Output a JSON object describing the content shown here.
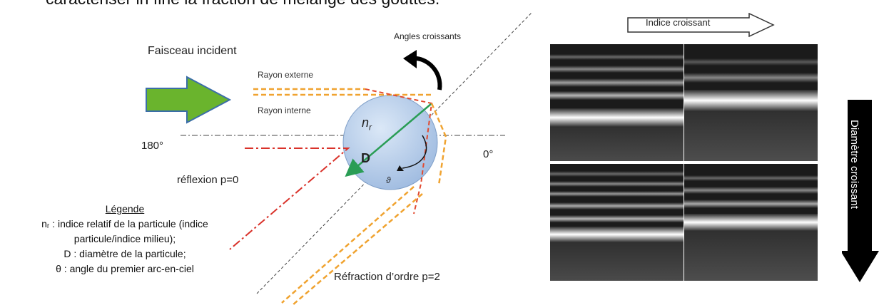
{
  "top_text": "caractériser in fine la fraction de mélange des gouttes.",
  "diagram": {
    "incident_beam": "Faisceau incident",
    "increasing_angles": "Angles croissants",
    "external_ray": "Rayon externe",
    "internal_ray": "Rayon interne",
    "angle_180": "180°",
    "angle_0": "0°",
    "nr_symbol": "n",
    "nr_sub": "r",
    "diameter_symbol": "D",
    "theta_symbol": "ϑ",
    "reflection": "réflexion  p=0",
    "refraction": "Réfraction d’ordre p=2"
  },
  "legend": {
    "title": "Légende",
    "lines": [
      "nᵣ : indice relatif de la particule (indice",
      "particule/indice milieu);",
      "D : diamètre de la particule;",
      "θ : angle du premier arc-en-ciel"
    ]
  },
  "arrows": {
    "index": "Indice croissant",
    "diameter": "Diamètre croissant"
  },
  "colors": {
    "green_arrow": "#6ab42d",
    "sphere": "#c6d9f1",
    "orange_dash": "#f0a330",
    "red_dashdot": "#d9322a"
  }
}
